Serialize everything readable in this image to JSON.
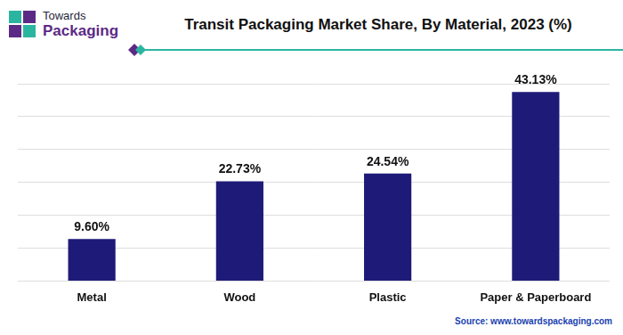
{
  "chart_data": {
    "type": "bar",
    "title": "Transit Packaging Market Share, By Material, 2023 (%)",
    "annotations": [
      "Towards",
      "Packaging",
      "Source: www.towardspackaging.com"
    ],
    "categories": [
      "Metal",
      "Wood",
      "Plastic",
      "Paper & Paperboard"
    ],
    "values": [
      9.6,
      22.73,
      24.54,
      43.13
    ],
    "value_labels": [
      "9.60%",
      "22.73%",
      "24.54%",
      "43.13%"
    ],
    "color": "#1e1b78",
    "ylim": [
      0,
      45
    ],
    "yticks": [
      0,
      7.5,
      15,
      22.5,
      30,
      37.5,
      45
    ],
    "grid": true,
    "data_labels": true,
    "tick_labels": "x"
  }
}
